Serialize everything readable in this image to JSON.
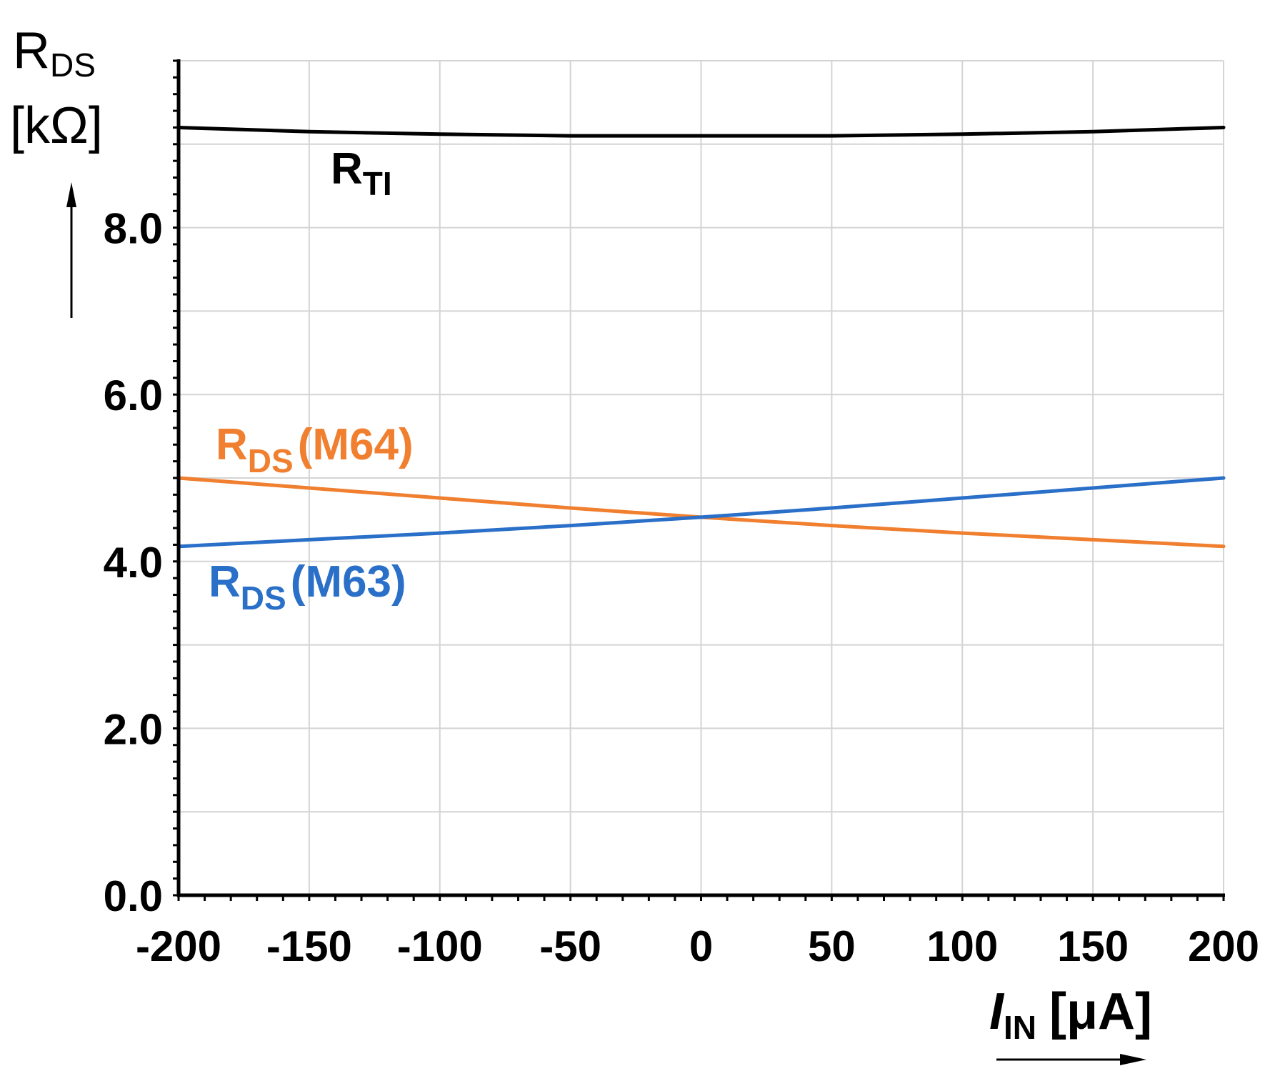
{
  "chart_data": {
    "type": "line",
    "title": "",
    "ylabel": {
      "main": "R",
      "sub": "DS",
      "unit": "[kΩ]"
    },
    "xlabel": {
      "main": "I",
      "sub": "IN",
      "unit": "[μA]"
    },
    "xlim": [
      -200,
      200
    ],
    "ylim": [
      0,
      10
    ],
    "xticks": [
      -200,
      -150,
      -100,
      -50,
      0,
      50,
      100,
      150,
      200
    ],
    "xtick_labels": [
      "-200",
      "-150",
      "-100",
      "-50",
      "0",
      "50",
      "100",
      "150",
      "200"
    ],
    "yticks": [
      0,
      2,
      4,
      6,
      8
    ],
    "ytick_labels": [
      "0.0",
      "2.0",
      "4.0",
      "6.0",
      "8.0"
    ],
    "grid": true,
    "series": [
      {
        "name": "RTI",
        "label_main": "R",
        "label_sub": "TI",
        "label_tail": "",
        "color": "#000000",
        "x": [
          -200,
          -150,
          -100,
          -50,
          0,
          50,
          100,
          150,
          200
        ],
        "values": [
          9.2,
          9.15,
          9.12,
          9.1,
          9.1,
          9.1,
          9.12,
          9.15,
          9.2
        ]
      },
      {
        "name": "RDS(M64)",
        "label_main": "R",
        "label_sub": "DS",
        "label_tail": "(M64)",
        "color": "#f07f2f",
        "x": [
          -200,
          -150,
          -100,
          -50,
          0,
          50,
          100,
          150,
          200
        ],
        "values": [
          5.0,
          4.88,
          4.76,
          4.64,
          4.53,
          4.43,
          4.34,
          4.26,
          4.18
        ]
      },
      {
        "name": "RDS(M63)",
        "label_main": "R",
        "label_sub": "DS",
        "label_tail": "(M63)",
        "color": "#2a6fc8",
        "x": [
          -200,
          -150,
          -100,
          -50,
          0,
          50,
          100,
          150,
          200
        ],
        "values": [
          4.18,
          4.26,
          4.34,
          4.43,
          4.53,
          4.64,
          4.76,
          4.88,
          5.0
        ]
      }
    ]
  }
}
